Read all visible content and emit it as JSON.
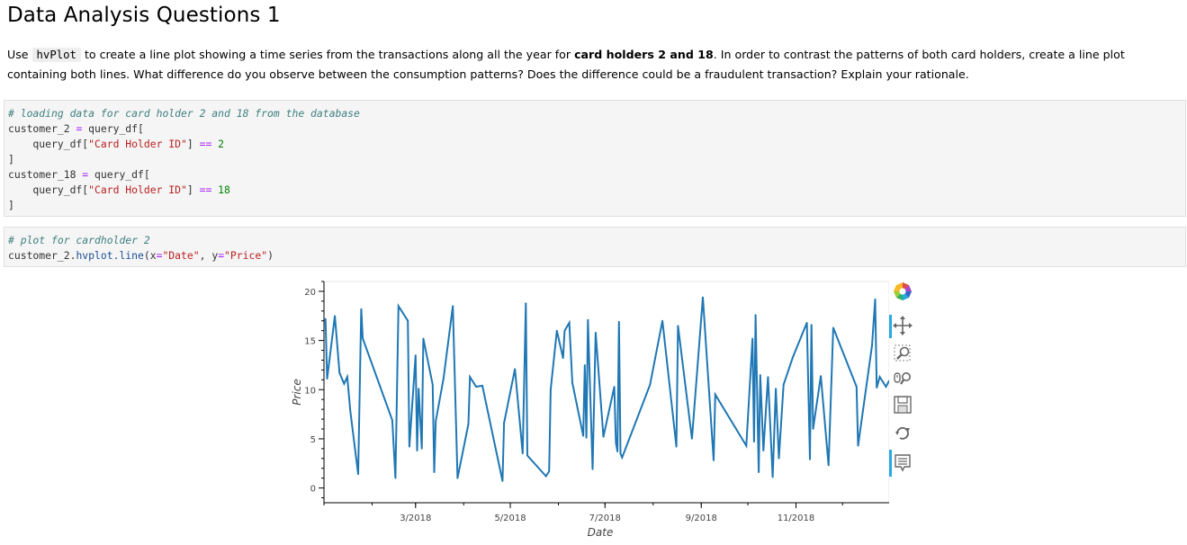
{
  "notebook": {
    "heading": "Data Analysis Questions 1",
    "prose": {
      "p1": "Use ",
      "code": "hvPlot",
      "p2": " to create a line plot showing a time series from the transactions along all the year for ",
      "bold": "card holders 2 and 18",
      "p3": ". In order to contrast the patterns of both card holders, create a line plot containing both lines. What difference do you observe between the consumption patterns? Does the difference could be a fraudulent transaction? Explain your rationale."
    },
    "cell1": {
      "comment": "# loading data for card holder 2 and 18 from the database",
      "l2a": "customer_2 ",
      "l2op": "=",
      "l2b": " query_df[",
      "l3a": "    query_df[",
      "l3s": "\"Card Holder ID\"",
      "l3b": "] ",
      "l3op": "==",
      "l3n": " 2",
      "l4": "]",
      "l5a": "customer_18 ",
      "l5op": "=",
      "l5b": " query_df[",
      "l6a": "    query_df[",
      "l6s": "\"Card Holder ID\"",
      "l6b": "] ",
      "l6op": "==",
      "l6n": " 18",
      "l7": "]"
    },
    "cell2": {
      "comment": "# plot for cardholder 2",
      "a": "customer_2.",
      "attr": "hvplot.line",
      "b": "(x",
      "op1": "=",
      "s1": "\"Date\"",
      "c": ", y",
      "op2": "=",
      "s2": "\"Price\"",
      "d": ")"
    }
  },
  "toolbar": {
    "icons": [
      "bokeh-logo-icon",
      "pan-icon",
      "box-zoom-icon",
      "wheel-zoom-icon",
      "save-icon",
      "reset-icon",
      "hover-icon"
    ],
    "colors": {
      "active": "#26aae1",
      "icon": "#666666"
    }
  },
  "chart_data": {
    "type": "line",
    "xlabel": "Date",
    "ylabel": "Price",
    "x_ticks": [
      "3/2018",
      "5/2018",
      "7/2018",
      "9/2018",
      "11/2018"
    ],
    "x_tick_dates": [
      "2018-03-01",
      "2018-05-01",
      "2018-07-01",
      "2018-09-01",
      "2018-11-01"
    ],
    "y_ticks": [
      0,
      5,
      10,
      15,
      20
    ],
    "xlim": [
      "2018-01-01",
      "2018-12-31"
    ],
    "ylim": [
      -1.5,
      21
    ],
    "grid": false,
    "series": [
      {
        "color": "#1f77b4",
        "points": [
          [
            "2018-01-02",
            17.2
          ],
          [
            "2018-01-03",
            11.1
          ],
          [
            "2018-01-08",
            17.5
          ],
          [
            "2018-01-11",
            11.7
          ],
          [
            "2018-01-14",
            10.6
          ],
          [
            "2018-01-16",
            11.3
          ],
          [
            "2018-01-18",
            7.8
          ],
          [
            "2018-01-23",
            1.4
          ],
          [
            "2018-01-25",
            18.2
          ],
          [
            "2018-01-26",
            15.2
          ],
          [
            "2018-02-14",
            6.9
          ],
          [
            "2018-02-16",
            1.0
          ],
          [
            "2018-02-18",
            18.5
          ],
          [
            "2018-02-24",
            17.0
          ],
          [
            "2018-02-25",
            4.2
          ],
          [
            "2018-03-01",
            13.5
          ],
          [
            "2018-03-02",
            3.8
          ],
          [
            "2018-03-03",
            10.1
          ],
          [
            "2018-03-05",
            4.0
          ],
          [
            "2018-03-06",
            15.2
          ],
          [
            "2018-03-12",
            10.5
          ],
          [
            "2018-03-13",
            1.6
          ],
          [
            "2018-03-14",
            6.8
          ],
          [
            "2018-03-19",
            11.1
          ],
          [
            "2018-03-25",
            18.5
          ],
          [
            "2018-03-28",
            1.0
          ],
          [
            "2018-04-04",
            6.5
          ],
          [
            "2018-04-05",
            11.3
          ],
          [
            "2018-04-09",
            10.3
          ],
          [
            "2018-04-13",
            10.4
          ],
          [
            "2018-04-26",
            0.7
          ],
          [
            "2018-04-27",
            6.6
          ],
          [
            "2018-05-04",
            12.1
          ],
          [
            "2018-05-09",
            3.5
          ],
          [
            "2018-05-11",
            18.8
          ],
          [
            "2018-05-12",
            3.3
          ],
          [
            "2018-05-24",
            1.2
          ],
          [
            "2018-05-26",
            1.7
          ],
          [
            "2018-05-27",
            10.0
          ],
          [
            "2018-05-31",
            16.0
          ],
          [
            "2018-06-04",
            13.2
          ],
          [
            "2018-06-05",
            16.0
          ],
          [
            "2018-06-08",
            16.8
          ],
          [
            "2018-06-10",
            10.7
          ],
          [
            "2018-06-17",
            5.3
          ],
          [
            "2018-06-18",
            12.5
          ],
          [
            "2018-06-19",
            5.1
          ],
          [
            "2018-06-20",
            17.1
          ],
          [
            "2018-06-23",
            1.9
          ],
          [
            "2018-06-25",
            15.8
          ],
          [
            "2018-06-30",
            5.2
          ],
          [
            "2018-07-07",
            10.3
          ],
          [
            "2018-07-08",
            4.6
          ],
          [
            "2018-07-09",
            3.7
          ],
          [
            "2018-07-10",
            16.9
          ],
          [
            "2018-07-11",
            3.5
          ],
          [
            "2018-07-12",
            3.1
          ],
          [
            "2018-07-30",
            10.5
          ],
          [
            "2018-08-07",
            17.0
          ],
          [
            "2018-08-16",
            4.2
          ],
          [
            "2018-08-17",
            16.5
          ],
          [
            "2018-08-26",
            5.0
          ],
          [
            "2018-09-02",
            19.4
          ],
          [
            "2018-09-09",
            2.8
          ],
          [
            "2018-09-10",
            9.5
          ],
          [
            "2018-09-30",
            4.3
          ],
          [
            "2018-10-04",
            15.2
          ],
          [
            "2018-10-05",
            4.7
          ],
          [
            "2018-10-06",
            17.6
          ],
          [
            "2018-10-08",
            1.6
          ],
          [
            "2018-10-09",
            11.5
          ],
          [
            "2018-10-11",
            3.8
          ],
          [
            "2018-10-14",
            11.3
          ],
          [
            "2018-10-17",
            1.1
          ],
          [
            "2018-10-19",
            10.1
          ],
          [
            "2018-10-21",
            3.0
          ],
          [
            "2018-10-24",
            10.5
          ],
          [
            "2018-10-30",
            13.3
          ],
          [
            "2018-11-08",
            16.8
          ],
          [
            "2018-11-10",
            2.9
          ],
          [
            "2018-11-11",
            16.6
          ],
          [
            "2018-11-12",
            6.0
          ],
          [
            "2018-11-17",
            11.4
          ],
          [
            "2018-11-22",
            2.3
          ],
          [
            "2018-11-25",
            16.3
          ],
          [
            "2018-12-10",
            10.3
          ],
          [
            "2018-12-11",
            4.3
          ],
          [
            "2018-12-20",
            14.5
          ],
          [
            "2018-12-22",
            19.2
          ],
          [
            "2018-12-23",
            10.2
          ],
          [
            "2018-12-25",
            11.3
          ],
          [
            "2018-12-29",
            10.3
          ],
          [
            "2018-12-31",
            10.9
          ]
        ]
      }
    ]
  }
}
